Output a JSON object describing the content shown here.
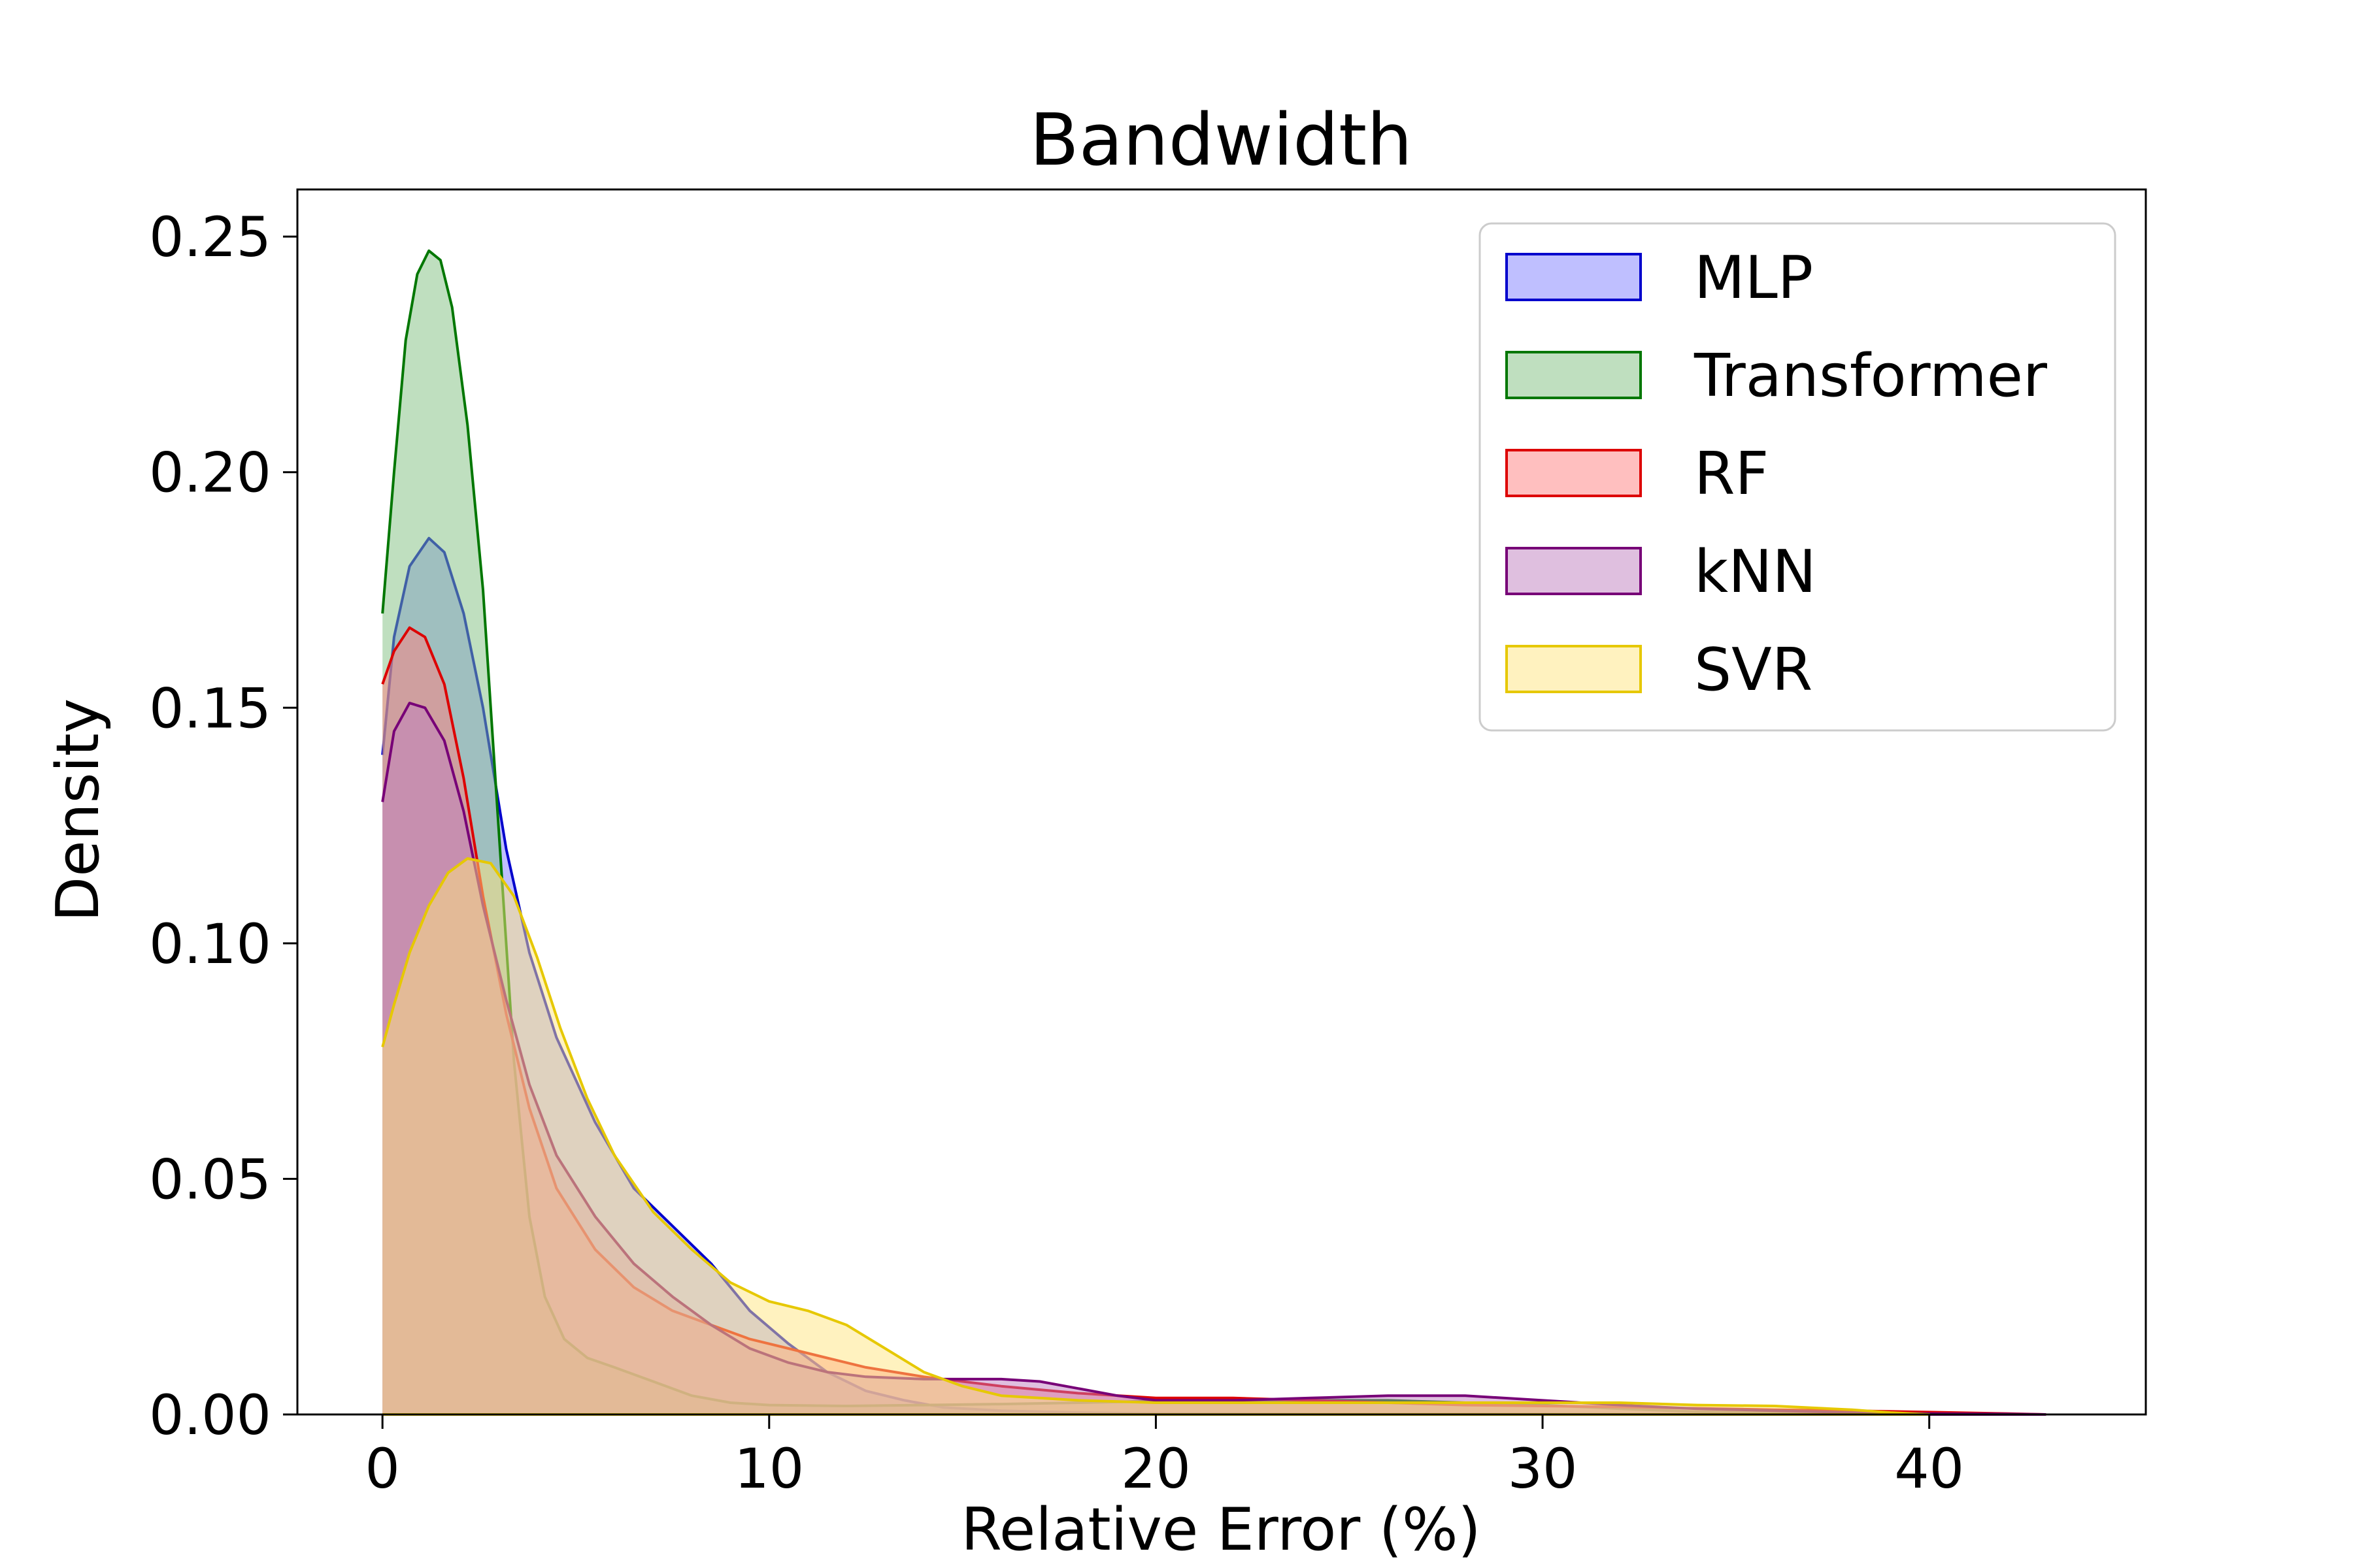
{
  "chart_data": {
    "type": "area",
    "title": "Bandwidth",
    "xlabel": "Relative Error (%)",
    "ylabel": "Density",
    "xlim": [
      -2.2,
      45.6
    ],
    "ylim": [
      0,
      0.26
    ],
    "xticks": [
      0,
      10,
      20,
      30,
      40
    ],
    "xtick_labels": [
      "0",
      "10",
      "20",
      "30",
      "40"
    ],
    "yticks": [
      0,
      0.05,
      0.1,
      0.15,
      0.2,
      0.25
    ],
    "ytick_labels": [
      "0.00",
      "0.05",
      "0.10",
      "0.15",
      "0.20",
      "0.25"
    ],
    "grid": false,
    "legend_position": "top-right",
    "series": [
      {
        "name": "MLP",
        "color": "#0000CC",
        "fill": "#8080FF",
        "points": [
          [
            0,
            0.14
          ],
          [
            0.3,
            0.165
          ],
          [
            0.7,
            0.18
          ],
          [
            1.2,
            0.186
          ],
          [
            1.6,
            0.183
          ],
          [
            2.1,
            0.17
          ],
          [
            2.6,
            0.15
          ],
          [
            3.2,
            0.12
          ],
          [
            3.8,
            0.098
          ],
          [
            4.5,
            0.08
          ],
          [
            5.5,
            0.062
          ],
          [
            6.5,
            0.048
          ],
          [
            7.5,
            0.04
          ],
          [
            8.5,
            0.032
          ],
          [
            9.5,
            0.022
          ],
          [
            10.5,
            0.015
          ],
          [
            11.5,
            0.009
          ],
          [
            12.5,
            0.005
          ],
          [
            13.5,
            0.003
          ],
          [
            14.5,
            0.0015
          ],
          [
            16,
            0.0008
          ],
          [
            18,
            0.0004
          ],
          [
            20,
            0.0002
          ],
          [
            25,
            0.0001
          ],
          [
            30,
            0.0001
          ],
          [
            35,
            0
          ],
          [
            40,
            0
          ]
        ]
      },
      {
        "name": "Transformer",
        "color": "#007700",
        "fill": "#80C080",
        "points": [
          [
            0,
            0.17
          ],
          [
            0.3,
            0.2
          ],
          [
            0.6,
            0.228
          ],
          [
            0.9,
            0.242
          ],
          [
            1.2,
            0.247
          ],
          [
            1.5,
            0.245
          ],
          [
            1.8,
            0.235
          ],
          [
            2.2,
            0.21
          ],
          [
            2.6,
            0.175
          ],
          [
            3.0,
            0.125
          ],
          [
            3.4,
            0.075
          ],
          [
            3.8,
            0.042
          ],
          [
            4.2,
            0.025
          ],
          [
            4.7,
            0.016
          ],
          [
            5.3,
            0.012
          ],
          [
            6,
            0.01
          ],
          [
            7,
            0.007
          ],
          [
            8,
            0.004
          ],
          [
            9,
            0.0025
          ],
          [
            10,
            0.002
          ],
          [
            12,
            0.0018
          ],
          [
            14,
            0.002
          ],
          [
            16,
            0.0022
          ],
          [
            18,
            0.0025
          ],
          [
            20,
            0.0028
          ],
          [
            22,
            0.003
          ],
          [
            24,
            0.003
          ],
          [
            26,
            0.003
          ],
          [
            28,
            0.0025
          ],
          [
            30,
            0.002
          ],
          [
            32,
            0.0012
          ],
          [
            34,
            0.0006
          ],
          [
            36,
            0.0003
          ],
          [
            38,
            0.0001
          ],
          [
            40,
            0
          ]
        ]
      },
      {
        "name": "RF",
        "color": "#DD0000",
        "fill": "#FF8080",
        "points": [
          [
            0,
            0.155
          ],
          [
            0.3,
            0.162
          ],
          [
            0.7,
            0.167
          ],
          [
            1.1,
            0.165
          ],
          [
            1.6,
            0.155
          ],
          [
            2.1,
            0.135
          ],
          [
            2.6,
            0.11
          ],
          [
            3.2,
            0.085
          ],
          [
            3.8,
            0.065
          ],
          [
            4.5,
            0.048
          ],
          [
            5.5,
            0.035
          ],
          [
            6.5,
            0.027
          ],
          [
            7.5,
            0.022
          ],
          [
            8.5,
            0.019
          ],
          [
            9.5,
            0.016
          ],
          [
            10.5,
            0.014
          ],
          [
            11.5,
            0.012
          ],
          [
            12.5,
            0.01
          ],
          [
            14,
            0.008
          ],
          [
            16,
            0.006
          ],
          [
            18,
            0.0045
          ],
          [
            20,
            0.0035
          ],
          [
            22,
            0.0035
          ],
          [
            24,
            0.003
          ],
          [
            26,
            0.0025
          ],
          [
            28,
            0.002
          ],
          [
            30,
            0.0018
          ],
          [
            32,
            0.0016
          ],
          [
            34,
            0.0013
          ],
          [
            36,
            0.001
          ],
          [
            38,
            0.0008
          ],
          [
            40,
            0.0005
          ],
          [
            42,
            0.0002
          ],
          [
            43,
            0
          ]
        ]
      },
      {
        "name": "kNN",
        "color": "#770077",
        "fill": "#C080C0",
        "points": [
          [
            0,
            0.13
          ],
          [
            0.3,
            0.145
          ],
          [
            0.7,
            0.151
          ],
          [
            1.1,
            0.15
          ],
          [
            1.6,
            0.143
          ],
          [
            2.1,
            0.128
          ],
          [
            2.6,
            0.108
          ],
          [
            3.2,
            0.088
          ],
          [
            3.8,
            0.07
          ],
          [
            4.5,
            0.055
          ],
          [
            5.5,
            0.042
          ],
          [
            6.5,
            0.032
          ],
          [
            7.5,
            0.025
          ],
          [
            8.5,
            0.019
          ],
          [
            9.5,
            0.014
          ],
          [
            10.5,
            0.011
          ],
          [
            11.5,
            0.009
          ],
          [
            12.5,
            0.008
          ],
          [
            14,
            0.0075
          ],
          [
            16,
            0.0075
          ],
          [
            17,
            0.007
          ],
          [
            18,
            0.0055
          ],
          [
            19,
            0.004
          ],
          [
            20,
            0.003
          ],
          [
            22,
            0.003
          ],
          [
            24,
            0.0035
          ],
          [
            26,
            0.004
          ],
          [
            28,
            0.004
          ],
          [
            30,
            0.003
          ],
          [
            32,
            0.002
          ],
          [
            34,
            0.0012
          ],
          [
            36,
            0.0008
          ],
          [
            38,
            0.0004
          ],
          [
            40,
            0.0002
          ],
          [
            42,
            0.0001
          ],
          [
            43,
            0
          ]
        ]
      },
      {
        "name": "SVR",
        "color": "#E6C800",
        "fill": "#FFE680",
        "points": [
          [
            0,
            0.078
          ],
          [
            0.3,
            0.087
          ],
          [
            0.7,
            0.098
          ],
          [
            1.2,
            0.108
          ],
          [
            1.7,
            0.115
          ],
          [
            2.2,
            0.118
          ],
          [
            2.8,
            0.117
          ],
          [
            3.4,
            0.11
          ],
          [
            4,
            0.097
          ],
          [
            4.6,
            0.082
          ],
          [
            5.3,
            0.067
          ],
          [
            6,
            0.055
          ],
          [
            7,
            0.043
          ],
          [
            8,
            0.035
          ],
          [
            9,
            0.028
          ],
          [
            10,
            0.024
          ],
          [
            11,
            0.022
          ],
          [
            12,
            0.019
          ],
          [
            13,
            0.014
          ],
          [
            14,
            0.009
          ],
          [
            15,
            0.006
          ],
          [
            16,
            0.004
          ],
          [
            18,
            0.003
          ],
          [
            20,
            0.0025
          ],
          [
            22,
            0.0025
          ],
          [
            24,
            0.0025
          ],
          [
            26,
            0.0025
          ],
          [
            28,
            0.0025
          ],
          [
            30,
            0.0025
          ],
          [
            32,
            0.0025
          ],
          [
            34,
            0.002
          ],
          [
            36,
            0.0018
          ],
          [
            38,
            0.001
          ],
          [
            39,
            0.0004
          ],
          [
            40,
            0
          ]
        ]
      }
    ]
  }
}
